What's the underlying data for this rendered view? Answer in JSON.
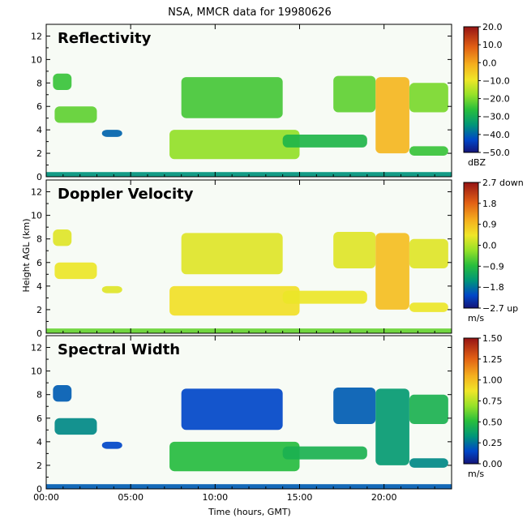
{
  "title": "NSA, MMCR data for 19980626",
  "xlabel": "Time (hours, GMT)",
  "ylabel": "Height AGL (km)",
  "x_ticks": [
    "00:00",
    "05:00",
    "10:00",
    "15:00",
    "20:00"
  ],
  "y_ticks": [
    "0",
    "2",
    "4",
    "6",
    "8",
    "10",
    "12"
  ],
  "chart_data": [
    {
      "type": "heatmap",
      "title": "Reflectivity",
      "colorbar_ticks": [
        "20.0",
        "10.0",
        "0.0",
        "−10.0",
        "−20.0",
        "−30.0",
        "−40.0",
        "−50.0"
      ],
      "colorbar_unit": "dBZ",
      "range": [
        -50,
        20
      ],
      "xlim": [
        0,
        24
      ],
      "ylim": [
        0,
        13
      ],
      "regions": [
        {
          "x": [
            0.4,
            1.5
          ],
          "y": [
            7.4,
            8.8
          ],
          "value": -25
        },
        {
          "x": [
            0.5,
            3.0
          ],
          "y": [
            4.6,
            6.0
          ],
          "value": -22
        },
        {
          "x": [
            3.3,
            4.5
          ],
          "y": [
            3.4,
            4.0
          ],
          "value": -40
        },
        {
          "x": [
            7.3,
            15.0
          ],
          "y": [
            1.5,
            4.0
          ],
          "value": -18
        },
        {
          "x": [
            14.0,
            19.0
          ],
          "y": [
            2.5,
            3.6
          ],
          "value": -28
        },
        {
          "x": [
            8.0,
            14.0
          ],
          "y": [
            5.0,
            8.5
          ],
          "value": -24
        },
        {
          "x": [
            17.0,
            19.5
          ],
          "y": [
            5.5,
            8.6
          ],
          "value": -22
        },
        {
          "x": [
            19.5,
            21.5
          ],
          "y": [
            2.0,
            8.5
          ],
          "value": -2
        },
        {
          "x": [
            21.5,
            23.8
          ],
          "y": [
            5.5,
            8.0
          ],
          "value": -20
        },
        {
          "x": [
            21.5,
            23.8
          ],
          "y": [
            1.8,
            2.6
          ],
          "value": -25
        },
        {
          "x": [
            0.0,
            24.0
          ],
          "y": [
            0.0,
            0.4
          ],
          "value": -35
        }
      ]
    },
    {
      "type": "heatmap",
      "title": "Doppler Velocity",
      "colorbar_ticks": [
        "2.7 down",
        "1.8",
        "0.9",
        "0.0",
        "−0.9",
        "−1.8",
        "−2.7 up"
      ],
      "colorbar_unit": "m/s",
      "range": [
        -2.7,
        2.7
      ],
      "xlim": [
        0,
        24
      ],
      "ylim": [
        0,
        13
      ],
      "regions": [
        {
          "x": [
            0.4,
            1.5
          ],
          "y": [
            7.4,
            8.8
          ],
          "value": 0.3
        },
        {
          "x": [
            0.5,
            3.0
          ],
          "y": [
            4.6,
            6.0
          ],
          "value": 0.4
        },
        {
          "x": [
            3.3,
            4.5
          ],
          "y": [
            3.4,
            4.0
          ],
          "value": 0.3
        },
        {
          "x": [
            7.3,
            15.0
          ],
          "y": [
            1.5,
            4.0
          ],
          "value": 0.5
        },
        {
          "x": [
            14.0,
            19.0
          ],
          "y": [
            2.5,
            3.6
          ],
          "value": 0.4
        },
        {
          "x": [
            8.0,
            14.0
          ],
          "y": [
            5.0,
            8.5
          ],
          "value": 0.3
        },
        {
          "x": [
            17.0,
            19.5
          ],
          "y": [
            5.5,
            8.6
          ],
          "value": 0.3
        },
        {
          "x": [
            19.5,
            21.5
          ],
          "y": [
            2.0,
            8.5
          ],
          "value": 0.9
        },
        {
          "x": [
            21.5,
            23.8
          ],
          "y": [
            5.5,
            8.0
          ],
          "value": 0.3
        },
        {
          "x": [
            21.5,
            23.8
          ],
          "y": [
            1.8,
            2.6
          ],
          "value": 0.4
        },
        {
          "x": [
            0.0,
            24.0
          ],
          "y": [
            0.0,
            0.4
          ],
          "value": -0.5
        }
      ]
    },
    {
      "type": "heatmap",
      "title": "Spectral Width",
      "colorbar_ticks": [
        "1.50",
        "1.25",
        "1.00",
        "0.75",
        "0.50",
        "0.25",
        "0.00"
      ],
      "colorbar_unit": "m/s",
      "range": [
        0,
        1.5
      ],
      "xlim": [
        0,
        24
      ],
      "ylim": [
        0,
        13
      ],
      "regions": [
        {
          "x": [
            0.4,
            1.5
          ],
          "y": [
            7.4,
            8.8
          ],
          "value": 0.2
        },
        {
          "x": [
            0.5,
            3.0
          ],
          "y": [
            4.6,
            6.0
          ],
          "value": 0.3
        },
        {
          "x": [
            3.3,
            4.5
          ],
          "y": [
            3.4,
            4.0
          ],
          "value": 0.15
        },
        {
          "x": [
            7.3,
            15.0
          ],
          "y": [
            1.5,
            4.0
          ],
          "value": 0.5
        },
        {
          "x": [
            14.0,
            19.0
          ],
          "y": [
            2.5,
            3.6
          ],
          "value": 0.45
        },
        {
          "x": [
            8.0,
            14.0
          ],
          "y": [
            5.0,
            8.5
          ],
          "value": 0.15
        },
        {
          "x": [
            17.0,
            19.5
          ],
          "y": [
            5.5,
            8.6
          ],
          "value": 0.2
        },
        {
          "x": [
            19.5,
            21.5
          ],
          "y": [
            2.0,
            8.5
          ],
          "value": 0.35
        },
        {
          "x": [
            21.5,
            23.8
          ],
          "y": [
            5.5,
            8.0
          ],
          "value": 0.45
        },
        {
          "x": [
            21.5,
            23.8
          ],
          "y": [
            1.8,
            2.6
          ],
          "value": 0.3
        },
        {
          "x": [
            0.0,
            24.0
          ],
          "y": [
            0.0,
            0.4
          ],
          "value": 0.2
        }
      ]
    }
  ]
}
